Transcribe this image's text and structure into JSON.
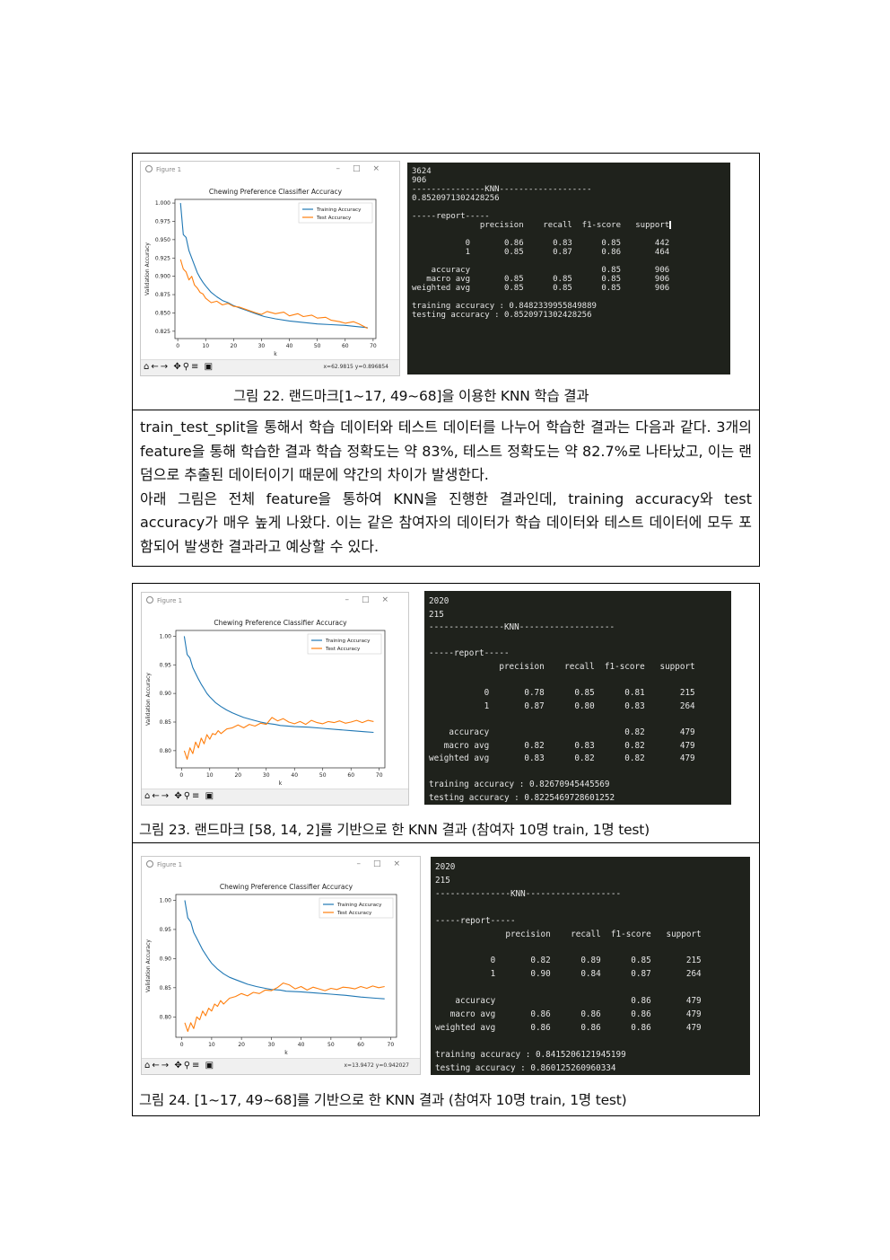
{
  "figure_window_title": "Figure 1",
  "figures": [
    {
      "caption": "그림 22. 랜드마크[1~17, 49~68]을 이용한 KNN 학습 결과",
      "coords": "x=62.9815     y=0.896854",
      "terminal": "3624\n906\n---------------KNN-------------------\n0.8520971302428256\n\n-----report-----\n              precision    recall  f1-score   support\n\n           0       0.86      0.83      0.85       442\n           1       0.85      0.87      0.86       464\n\n    accuracy                           0.85       906\n   macro avg       0.85      0.85      0.85       906\nweighted avg       0.85      0.85      0.85       906\n\ntraining accuracy : 0.8482339955849889\ntesting accuracy : 0.8520971302428256",
      "chart_data": {
        "type": "line",
        "title": "Chewing Preference Classifier Accuracy",
        "xlabel": "k",
        "ylabel": "Validation Accuracy",
        "xlim": [
          -1,
          71
        ],
        "ylim": [
          0.815,
          1.005
        ],
        "xticks": [
          0,
          10,
          20,
          30,
          40,
          50,
          60,
          70
        ],
        "yticks": [
          0.825,
          0.85,
          0.875,
          0.9,
          0.925,
          0.95,
          0.975,
          1.0
        ],
        "ytick_labels": [
          "0.825",
          "0.850",
          "0.875",
          "0.900",
          "0.925",
          "0.950",
          "0.975",
          "1.000"
        ],
        "legend": "top-right",
        "series": [
          {
            "name": "Training Accuracy",
            "color": "#1f77b4",
            "x": [
              1,
              2,
              3,
              4,
              5,
              6,
              7,
              8,
              9,
              10,
              12,
              14,
              16,
              18,
              20,
              22,
              25,
              28,
              31,
              35,
              40,
              45,
              50,
              55,
              60,
              65,
              68
            ],
            "y": [
              1.0,
              0.957,
              0.953,
              0.935,
              0.925,
              0.915,
              0.905,
              0.898,
              0.892,
              0.887,
              0.878,
              0.872,
              0.867,
              0.864,
              0.86,
              0.857,
              0.853,
              0.849,
              0.845,
              0.842,
              0.839,
              0.837,
              0.835,
              0.834,
              0.833,
              0.831,
              0.83
            ]
          },
          {
            "name": "Test Accuracy",
            "color": "#ff7f0e",
            "x": [
              1,
              2,
              3,
              4,
              5,
              6,
              7,
              8,
              9,
              10,
              12,
              14,
              16,
              18,
              20,
              22,
              25,
              28,
              30,
              32,
              35,
              38,
              40,
              43,
              45,
              48,
              50,
              53,
              55,
              58,
              60,
              63,
              65,
              68
            ],
            "y": [
              0.923,
              0.91,
              0.906,
              0.895,
              0.9,
              0.888,
              0.884,
              0.878,
              0.876,
              0.87,
              0.864,
              0.866,
              0.861,
              0.863,
              0.859,
              0.858,
              0.854,
              0.85,
              0.848,
              0.852,
              0.849,
              0.851,
              0.846,
              0.849,
              0.845,
              0.847,
              0.843,
              0.844,
              0.84,
              0.838,
              0.836,
              0.838,
              0.835,
              0.829
            ]
          }
        ]
      }
    },
    {
      "caption": "그림 23. 랜드마크 [58, 14, 2]를 기반으로 한 KNN 결과 (참여자 10명 train, 1명 test)",
      "coords": "",
      "terminal": "2020\n215\n---------------KNN-------------------\n\n-----report-----\n              precision    recall  f1-score   support\n\n           0       0.78      0.85      0.81       215\n           1       0.87      0.80      0.83       264\n\n    accuracy                           0.82       479\n   macro avg       0.82      0.83      0.82       479\nweighted avg       0.83      0.82      0.82       479\n\ntraining accuracy : 0.82670945445569\ntesting accuracy : 0.8225469728601252",
      "chart_data": {
        "type": "line",
        "title": "Chewing Preference Classifier Accuracy",
        "xlabel": "k",
        "ylabel": "Validation Accuracy",
        "xlim": [
          -2,
          72
        ],
        "ylim": [
          0.77,
          1.01
        ],
        "xticks": [
          0,
          10,
          20,
          30,
          40,
          50,
          60,
          70
        ],
        "yticks": [
          0.8,
          0.85,
          0.9,
          0.95,
          1.0
        ],
        "ytick_labels": [
          "0.80",
          "0.85",
          "0.90",
          "0.95",
          "1.00"
        ],
        "legend": "top-right",
        "series": [
          {
            "name": "Training Accuracy",
            "color": "#1f77b4",
            "x": [
              1,
              2,
              3,
              4,
              5,
              6,
              7,
              8,
              9,
              10,
              12,
              14,
              16,
              18,
              20,
              22,
              25,
              28,
              30,
              33,
              35,
              40,
              45,
              50,
              55,
              60,
              65,
              68
            ],
            "y": [
              1.0,
              0.968,
              0.962,
              0.945,
              0.935,
              0.925,
              0.916,
              0.908,
              0.9,
              0.894,
              0.884,
              0.877,
              0.871,
              0.866,
              0.862,
              0.858,
              0.854,
              0.85,
              0.848,
              0.846,
              0.844,
              0.842,
              0.841,
              0.839,
              0.837,
              0.835,
              0.833,
              0.832
            ]
          },
          {
            "name": "Test Accuracy",
            "color": "#ff7f0e",
            "x": [
              1,
              2,
              3,
              4,
              5,
              6,
              7,
              8,
              9,
              10,
              11,
              12,
              13,
              14,
              16,
              18,
              20,
              22,
              24,
              26,
              28,
              30,
              32,
              34,
              36,
              38,
              40,
              42,
              44,
              46,
              48,
              50,
              52,
              54,
              56,
              58,
              60,
              62,
              64,
              66,
              68
            ],
            "y": [
              0.8,
              0.785,
              0.805,
              0.795,
              0.815,
              0.805,
              0.822,
              0.812,
              0.828,
              0.82,
              0.83,
              0.828,
              0.835,
              0.83,
              0.838,
              0.84,
              0.845,
              0.84,
              0.846,
              0.843,
              0.848,
              0.846,
              0.858,
              0.852,
              0.856,
              0.85,
              0.847,
              0.851,
              0.846,
              0.853,
              0.849,
              0.847,
              0.851,
              0.849,
              0.852,
              0.848,
              0.85,
              0.853,
              0.849,
              0.853,
              0.851
            ]
          }
        ]
      }
    },
    {
      "caption": "그림 24. [1~17, 49~68]를 기반으로 한 KNN 결과 (참여자 10명 train, 1명 test)",
      "coords": "x=13.9472     y=0.942027",
      "terminal": "2020\n215\n---------------KNN-------------------\n\n-----report-----\n              precision    recall  f1-score   support\n\n           0       0.82      0.89      0.85       215\n           1       0.90      0.84      0.87       264\n\n    accuracy                           0.86       479\n   macro avg       0.86      0.86      0.86       479\nweighted avg       0.86      0.86      0.86       479\n\ntraining accuracy : 0.8415206121945199\ntesting accuracy : 0.860125260960334",
      "chart_data": {
        "type": "line",
        "title": "Chewing Preference Classifier Accuracy",
        "xlabel": "k",
        "ylabel": "Validation Accuracy",
        "xlim": [
          -2,
          72
        ],
        "ylim": [
          0.765,
          1.01
        ],
        "xticks": [
          0,
          10,
          20,
          30,
          40,
          50,
          60,
          70
        ],
        "yticks": [
          0.8,
          0.85,
          0.9,
          0.95,
          1.0
        ],
        "ytick_labels": [
          "0.80",
          "0.85",
          "0.90",
          "0.95",
          "1.00"
        ],
        "legend": "top-right",
        "series": [
          {
            "name": "Training Accuracy",
            "color": "#1f77b4",
            "x": [
              1,
              2,
              3,
              4,
              5,
              6,
              7,
              8,
              9,
              10,
              12,
              14,
              16,
              18,
              20,
              22,
              25,
              28,
              30,
              33,
              35,
              40,
              45,
              50,
              55,
              60,
              65,
              68
            ],
            "y": [
              1.0,
              0.97,
              0.963,
              0.945,
              0.935,
              0.925,
              0.915,
              0.907,
              0.899,
              0.892,
              0.882,
              0.874,
              0.868,
              0.864,
              0.86,
              0.856,
              0.852,
              0.849,
              0.847,
              0.846,
              0.844,
              0.843,
              0.841,
              0.839,
              0.837,
              0.834,
              0.832,
              0.831
            ]
          },
          {
            "name": "Test Accuracy",
            "color": "#ff7f0e",
            "x": [
              1,
              2,
              3,
              4,
              5,
              6,
              7,
              8,
              9,
              10,
              11,
              12,
              13,
              14,
              16,
              18,
              20,
              22,
              24,
              26,
              28,
              30,
              32,
              34,
              36,
              38,
              40,
              42,
              44,
              46,
              48,
              50,
              52,
              54,
              56,
              58,
              60,
              62,
              64,
              66,
              68
            ],
            "y": [
              0.79,
              0.775,
              0.79,
              0.78,
              0.8,
              0.795,
              0.81,
              0.802,
              0.815,
              0.81,
              0.822,
              0.818,
              0.828,
              0.822,
              0.832,
              0.835,
              0.84,
              0.836,
              0.842,
              0.84,
              0.846,
              0.845,
              0.85,
              0.858,
              0.855,
              0.848,
              0.852,
              0.846,
              0.851,
              0.848,
              0.845,
              0.849,
              0.847,
              0.851,
              0.85,
              0.848,
              0.852,
              0.849,
              0.853,
              0.85,
              0.852
            ]
          }
        ]
      }
    }
  ],
  "paragraph": {
    "p1": "train_test_split을 통해서 학습 데이터와 테스트 데이터를 나누어 학습한 결과는 다음과 같다. 3개의 feature을 통해 학습한 결과 학습 정확도는 약 83%, 테스트 정확도는 약 82.7%로 나타났고, 이는 랜덤으로 추출된 데이터이기 때문에 약간의 차이가 발생한다.",
    "p2": "아래 그림은 전체 feature을 통하여 KNN을 진행한 결과인데, training accuracy와 test accuracy가 매우 높게 나왔다. 이는 같은 참여자의 데이터가 학습 데이터와 테스트 데이터에 모두 포함되어 발생한 결과라고 예상할 수 있다."
  }
}
